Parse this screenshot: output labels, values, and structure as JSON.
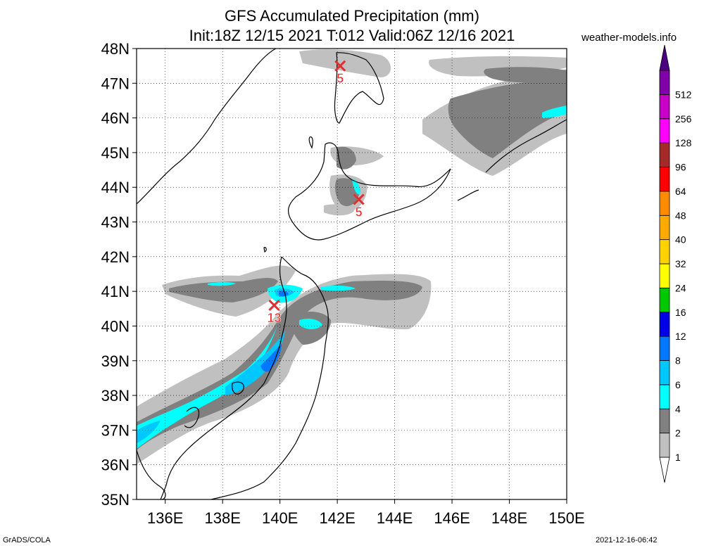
{
  "header": {
    "title_line1": "GFS Accumulated Precipitation (mm)",
    "title_line2": "Init:18Z 12/15 2021 T:012 Valid:06Z 12/16 2021",
    "site": "weather-models.info"
  },
  "axes": {
    "lat_labels": [
      "35N",
      "36N",
      "37N",
      "38N",
      "39N",
      "40N",
      "41N",
      "42N",
      "43N",
      "44N",
      "45N",
      "46N",
      "47N",
      "48N"
    ],
    "lon_labels": [
      "136E",
      "138E",
      "140E",
      "142E",
      "144E",
      "146E",
      "148E",
      "150E"
    ]
  },
  "markers": [
    {
      "label": "5",
      "lat": 47.5,
      "lon": 142.1
    },
    {
      "label": "5",
      "lat": 43.65,
      "lon": 142.75
    },
    {
      "label": "13",
      "lat": 40.6,
      "lon": 139.8
    }
  ],
  "legend": {
    "levels": [
      "1",
      "2",
      "4",
      "6",
      "8",
      "12",
      "16",
      "24",
      "32",
      "40",
      "48",
      "64",
      "96",
      "128",
      "256",
      "512"
    ],
    "colors": [
      "#c0c0c0",
      "#808080",
      "#00ffff",
      "#00c8ff",
      "#0078ff",
      "#0000e6",
      "#00c800",
      "#ffff00",
      "#ffd200",
      "#ffaa00",
      "#ff8c00",
      "#ff0000",
      "#a52a2a",
      "#ff00ff",
      "#c800c8",
      "#8200aa",
      "#4b0082"
    ]
  },
  "footer": {
    "left": "GrADS/COLA",
    "right": "2021-12-16-06:42"
  }
}
